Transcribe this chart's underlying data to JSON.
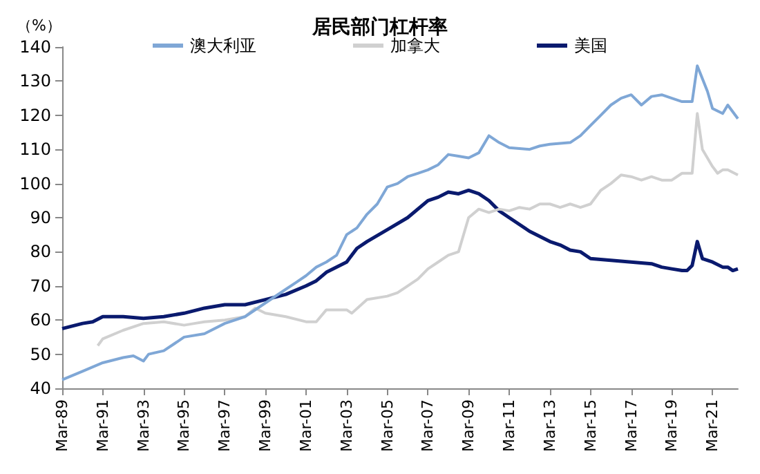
{
  "chart_data": {
    "type": "line",
    "title": "居民部门杠杆率",
    "ylabel": "（%）",
    "legend": "top",
    "grid": false,
    "marker": "none",
    "line_style": "solid",
    "xlim": [
      "1989-03",
      "2022-06"
    ],
    "xticks": [
      {
        "value": "1989-03",
        "label": "Mar-89"
      },
      {
        "value": "1991-03",
        "label": "Mar-91"
      },
      {
        "value": "1993-03",
        "label": "Mar-93"
      },
      {
        "value": "1995-03",
        "label": "Mar-95"
      },
      {
        "value": "1997-03",
        "label": "Mar-97"
      },
      {
        "value": "1999-03",
        "label": "Mar-99"
      },
      {
        "value": "2001-03",
        "label": "Mar-01"
      },
      {
        "value": "2003-03",
        "label": "Mar-03"
      },
      {
        "value": "2005-03",
        "label": "Mar-05"
      },
      {
        "value": "2007-03",
        "label": "Mar-07"
      },
      {
        "value": "2009-03",
        "label": "Mar-09"
      },
      {
        "value": "2011-03",
        "label": "Mar-11"
      },
      {
        "value": "2013-03",
        "label": "Mar-13"
      },
      {
        "value": "2015-03",
        "label": "Mar-15"
      },
      {
        "value": "2017-03",
        "label": "Mar-17"
      },
      {
        "value": "2019-03",
        "label": "Mar-19"
      },
      {
        "value": "2021-03",
        "label": "Mar-21"
      }
    ],
    "ylim": [
      40,
      140
    ],
    "yticks": [
      40,
      50,
      60,
      70,
      80,
      90,
      100,
      110,
      120,
      130,
      140
    ],
    "series": [
      {
        "name": "澳大利亚",
        "color": "#7fa7d6",
        "x": [
          "1989-03",
          "1990-03",
          "1991-03",
          "1992-03",
          "1992-09",
          "1993-03",
          "1993-06",
          "1994-03",
          "1994-09",
          "1995-03",
          "1996-03",
          "1997-03",
          "1998-03",
          "1999-03",
          "2000-03",
          "2000-09",
          "2001-03",
          "2001-09",
          "2002-03",
          "2002-09",
          "2003-03",
          "2003-09",
          "2004-03",
          "2004-09",
          "2005-03",
          "2005-09",
          "2006-03",
          "2006-09",
          "2007-03",
          "2007-09",
          "2008-03",
          "2008-09",
          "2009-03",
          "2009-09",
          "2010-03",
          "2010-09",
          "2011-03",
          "2012-03",
          "2012-09",
          "2013-03",
          "2014-03",
          "2014-09",
          "2015-03",
          "2015-09",
          "2016-03",
          "2016-09",
          "2017-03",
          "2017-09",
          "2018-03",
          "2018-09",
          "2019-03",
          "2019-09",
          "2020-03",
          "2020-06",
          "2020-12",
          "2021-03",
          "2021-09",
          "2021-12",
          "2022-06"
        ],
        "values": [
          42.5,
          45,
          47.5,
          49,
          49.5,
          48,
          50,
          51,
          53,
          55,
          56,
          59,
          61,
          65,
          69,
          71,
          73,
          75.5,
          77,
          79,
          85,
          87,
          91,
          94,
          99,
          100,
          102,
          103,
          104,
          105.5,
          108.5,
          108,
          107.5,
          109,
          114,
          112,
          110.5,
          110,
          111,
          111.5,
          112,
          114,
          117,
          120,
          123,
          125,
          126,
          123,
          125.5,
          126,
          125,
          124,
          124,
          134.5,
          127,
          122,
          120.5,
          123,
          119
        ]
      },
      {
        "name": "加拿大",
        "color": "#d0d0d0",
        "x": [
          "1990-12",
          "1991-03",
          "1992-03",
          "1993-03",
          "1994-03",
          "1995-03",
          "1995-09",
          "1996-03",
          "1997-03",
          "1998-03",
          "1998-09",
          "1999-03",
          "2000-03",
          "2001-03",
          "2001-09",
          "2002-03",
          "2003-03",
          "2003-06",
          "2004-03",
          "2005-03",
          "2005-09",
          "2006-03",
          "2006-09",
          "2007-03",
          "2007-09",
          "2008-03",
          "2008-09",
          "2009-03",
          "2009-09",
          "2010-03",
          "2010-09",
          "2011-03",
          "2011-09",
          "2012-03",
          "2012-09",
          "2013-03",
          "2013-09",
          "2014-03",
          "2014-09",
          "2015-03",
          "2015-09",
          "2016-03",
          "2016-09",
          "2017-03",
          "2017-09",
          "2018-03",
          "2018-09",
          "2019-03",
          "2019-09",
          "2020-03",
          "2020-06",
          "2020-09",
          "2021-03",
          "2021-06",
          "2021-09",
          "2021-12",
          "2022-06"
        ],
        "values": [
          52.5,
          54.5,
          57,
          59,
          59.5,
          58.5,
          59,
          59.5,
          60,
          61,
          63.5,
          62,
          61,
          59.5,
          59.5,
          63,
          63,
          62,
          66,
          67,
          68,
          70,
          72,
          75,
          77,
          79,
          80,
          90,
          92.5,
          91.5,
          92.5,
          92,
          93,
          92.5,
          94,
          94,
          93,
          94,
          93,
          94,
          98,
          100,
          102.5,
          102,
          101,
          102,
          101,
          101,
          103,
          103,
          120.5,
          110,
          105,
          103,
          104,
          104,
          102.5
        ]
      },
      {
        "name": "美国",
        "color": "#0a1a6e",
        "x": [
          "1989-03",
          "1990-03",
          "1990-09",
          "1991-03",
          "1992-03",
          "1993-03",
          "1994-03",
          "1995-03",
          "1996-03",
          "1997-03",
          "1998-03",
          "1999-03",
          "2000-03",
          "2001-03",
          "2001-09",
          "2002-03",
          "2003-03",
          "2003-09",
          "2004-03",
          "2005-03",
          "2006-03",
          "2007-03",
          "2007-09",
          "2008-03",
          "2008-09",
          "2009-03",
          "2009-09",
          "2010-03",
          "2010-09",
          "2011-03",
          "2012-03",
          "2013-03",
          "2013-09",
          "2014-03",
          "2014-09",
          "2015-03",
          "2016-03",
          "2017-03",
          "2018-03",
          "2018-09",
          "2019-03",
          "2019-09",
          "2019-12",
          "2020-03",
          "2020-06",
          "2020-09",
          "2021-03",
          "2021-09",
          "2021-12",
          "2022-03",
          "2022-06"
        ],
        "values": [
          57.5,
          59,
          59.5,
          61,
          61,
          60.5,
          61,
          62,
          63.5,
          64.5,
          64.5,
          66,
          67.5,
          70,
          71.5,
          74,
          77,
          81,
          83,
          86.5,
          90,
          95,
          96,
          97.5,
          97,
          98,
          97,
          95,
          92,
          90,
          86,
          83,
          82,
          80.5,
          80,
          78,
          77.5,
          77,
          76.5,
          75.5,
          75,
          74.5,
          74.5,
          76,
          83,
          78,
          77,
          75.5,
          75.5,
          74.5,
          75
        ]
      }
    ]
  }
}
